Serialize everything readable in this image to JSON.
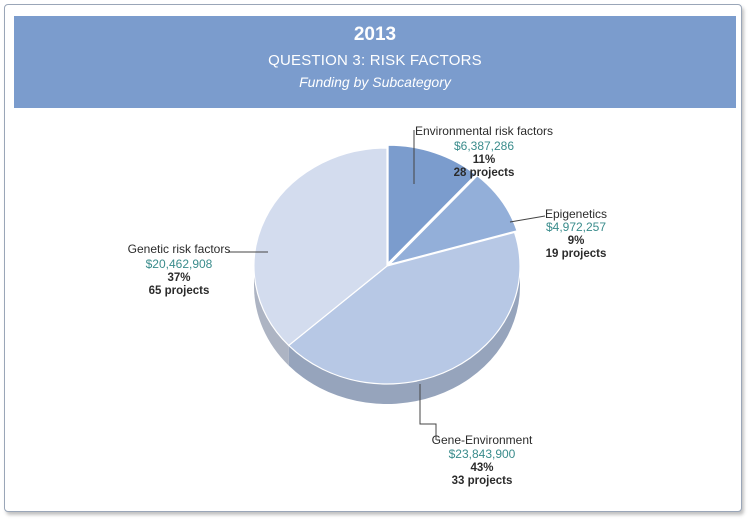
{
  "header": {
    "year": "2013",
    "question": "QUESTION 3: RISK FACTORS",
    "subtitle": "Funding by Subcategory"
  },
  "colors": {
    "header_bg": "#7b9ccd",
    "amount_text": "#3a8c8c"
  },
  "chart_data": {
    "type": "pie",
    "title": "Funding by Subcategory",
    "slices": [
      {
        "name": "Environmental risk factors",
        "amount": "$6,387,286",
        "value": 6387286,
        "percent": "11%",
        "projects": "28 projects",
        "color": "#7b9ccd"
      },
      {
        "name": "Epigenetics",
        "amount": "$4,972,257",
        "value": 4972257,
        "percent": "9%",
        "projects": "19 projects",
        "color": "#93afd9"
      },
      {
        "name": "Gene-Environment",
        "amount": "$23,843,900",
        "value": 23843900,
        "percent": "43%",
        "projects": "33 projects",
        "color": "#b7c8e5"
      },
      {
        "name": "Genetic risk factors",
        "amount": "$20,462,908",
        "value": 20462908,
        "percent": "37%",
        "projects": "65 projects",
        "color": "#d3dcee"
      }
    ]
  }
}
